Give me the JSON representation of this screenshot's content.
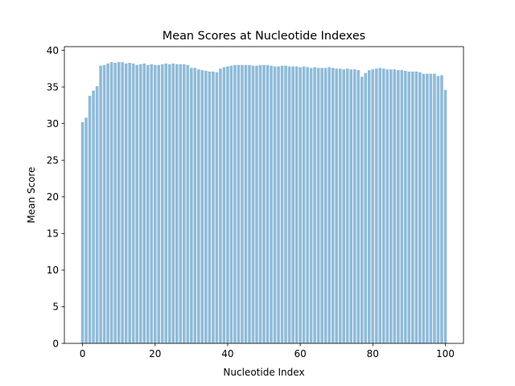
{
  "chart_data": {
    "type": "bar",
    "title": "Mean Scores at Nucleotide Indexes",
    "xlabel": "Nucleotide Index",
    "ylabel": "Mean Score",
    "xlim": [
      -5,
      105
    ],
    "ylim": [
      0,
      40.5
    ],
    "xticks": [
      0,
      20,
      40,
      60,
      80,
      100
    ],
    "yticks": [
      0,
      5,
      10,
      15,
      20,
      25,
      30,
      35,
      40
    ],
    "grid": false,
    "legend": "none",
    "bar_color": "#1f77b4",
    "bar_opacity": 0.5,
    "x": [
      0,
      1,
      2,
      3,
      4,
      5,
      6,
      7,
      8,
      9,
      10,
      11,
      12,
      13,
      14,
      15,
      16,
      17,
      18,
      19,
      20,
      21,
      22,
      23,
      24,
      25,
      26,
      27,
      28,
      29,
      30,
      31,
      32,
      33,
      34,
      35,
      36,
      37,
      38,
      39,
      40,
      41,
      42,
      43,
      44,
      45,
      46,
      47,
      48,
      49,
      50,
      51,
      52,
      53,
      54,
      55,
      56,
      57,
      58,
      59,
      60,
      61,
      62,
      63,
      64,
      65,
      66,
      67,
      68,
      69,
      70,
      71,
      72,
      73,
      74,
      75,
      76,
      77,
      78,
      79,
      80,
      81,
      82,
      83,
      84,
      85,
      86,
      87,
      88,
      89,
      90,
      91,
      92,
      93,
      94,
      95,
      96,
      97,
      98,
      99,
      100
    ],
    "values": [
      30.2,
      30.8,
      33.8,
      34.5,
      35.1,
      37.9,
      38.0,
      38.2,
      38.4,
      38.3,
      38.4,
      38.4,
      38.2,
      38.3,
      38.2,
      38.0,
      38.1,
      38.2,
      38.0,
      38.1,
      38.0,
      38.0,
      38.1,
      38.2,
      38.1,
      38.2,
      38.1,
      38.1,
      38.1,
      38.0,
      37.6,
      37.6,
      37.4,
      37.3,
      37.2,
      37.1,
      37.1,
      37.0,
      37.5,
      37.7,
      37.8,
      37.9,
      38.0,
      38.0,
      38.0,
      38.0,
      38.0,
      37.9,
      37.9,
      38.0,
      38.0,
      38.0,
      37.9,
      37.8,
      37.8,
      37.9,
      37.9,
      37.8,
      37.8,
      37.8,
      37.7,
      37.8,
      37.7,
      37.6,
      37.7,
      37.6,
      37.6,
      37.6,
      37.7,
      37.6,
      37.5,
      37.5,
      37.4,
      37.5,
      37.4,
      37.4,
      37.3,
      36.4,
      36.9,
      37.3,
      37.4,
      37.5,
      37.6,
      37.5,
      37.4,
      37.4,
      37.4,
      37.3,
      37.3,
      37.2,
      37.1,
      37.1,
      37.1,
      37.0,
      36.8,
      36.8,
      36.8,
      36.8,
      36.5,
      36.6,
      34.6
    ]
  }
}
